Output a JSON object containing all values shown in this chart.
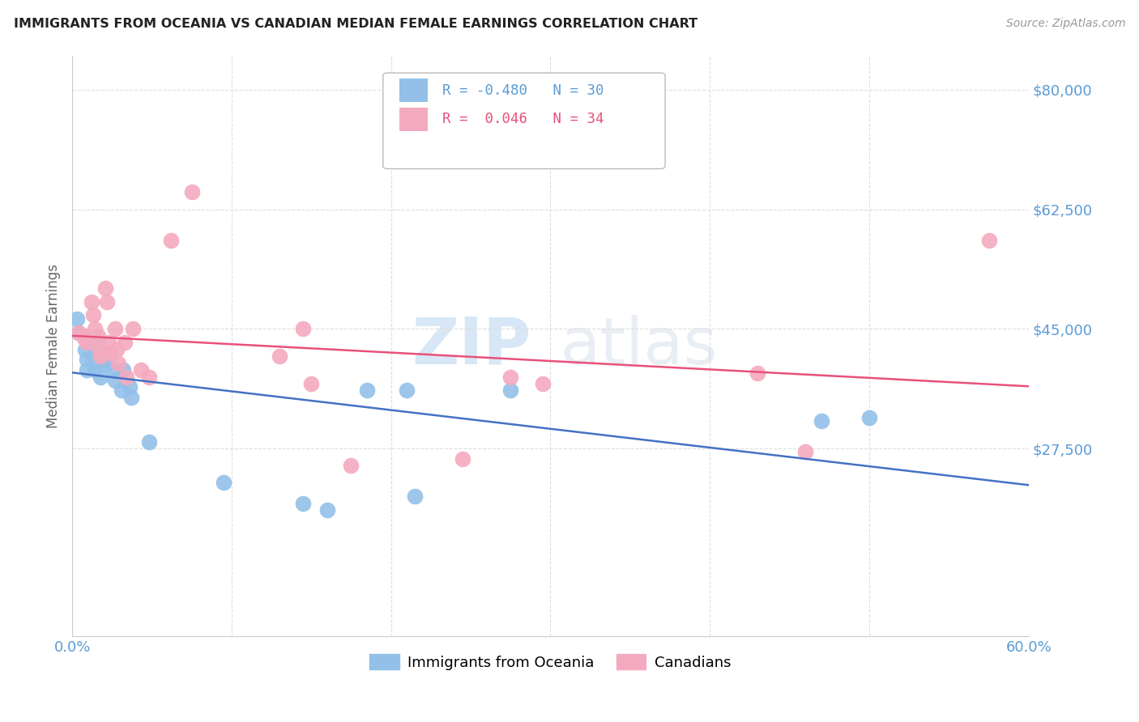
{
  "title": "IMMIGRANTS FROM OCEANIA VS CANADIAN MEDIAN FEMALE EARNINGS CORRELATION CHART",
  "source": "Source: ZipAtlas.com",
  "ylabel": "Median Female Earnings",
  "xlim": [
    0.0,
    0.6
  ],
  "ylim": [
    0,
    85000
  ],
  "ytick_positions": [
    0,
    27500,
    45000,
    62500,
    80000
  ],
  "ytick_labels": [
    "",
    "$27,500",
    "$45,000",
    "$62,500",
    "$80,000"
  ],
  "xtick_positions": [
    0.0,
    0.1,
    0.2,
    0.3,
    0.4,
    0.5,
    0.6
  ],
  "xtick_labels": [
    "0.0%",
    "",
    "",
    "",
    "",
    "",
    "60.0%"
  ],
  "blue_color": "#92C0E8",
  "pink_color": "#F4AABE",
  "line_blue": "#4472C4",
  "line_pink": "#E8517A",
  "axis_color": "#5B9BD5",
  "grid_color": "#DDDDDD",
  "blue_R": "-0.480",
  "blue_N": "30",
  "pink_R": "0.046",
  "pink_N": "34",
  "legend_label_blue": "Immigrants from Oceania",
  "legend_label_pink": "Canadians",
  "watermark_zip": "ZIP",
  "watermark_atlas": "atlas",
  "blue_x": [
    0.003,
    0.004,
    0.007,
    0.008,
    0.009,
    0.009,
    0.012,
    0.013,
    0.014,
    0.016,
    0.017,
    0.018,
    0.021,
    0.022,
    0.026,
    0.027,
    0.031,
    0.032,
    0.036,
    0.037,
    0.048,
    0.095,
    0.145,
    0.16,
    0.185,
    0.21,
    0.215,
    0.275,
    0.47,
    0.5
  ],
  "blue_y": [
    46500,
    44500,
    44000,
    42000,
    40500,
    39000,
    43000,
    41000,
    39000,
    43000,
    40000,
    38000,
    41000,
    40000,
    39000,
    37500,
    36000,
    39000,
    36500,
    35000,
    28500,
    22500,
    19500,
    18500,
    36000,
    36000,
    20500,
    36000,
    31500,
    32000
  ],
  "pink_x": [
    0.004,
    0.007,
    0.008,
    0.009,
    0.012,
    0.013,
    0.014,
    0.016,
    0.017,
    0.018,
    0.021,
    0.022,
    0.023,
    0.024,
    0.027,
    0.028,
    0.029,
    0.033,
    0.034,
    0.038,
    0.043,
    0.048,
    0.062,
    0.075,
    0.13,
    0.145,
    0.15,
    0.175,
    0.245,
    0.275,
    0.295,
    0.43,
    0.46,
    0.575
  ],
  "pink_y": [
    44500,
    44000,
    43500,
    43000,
    49000,
    47000,
    45000,
    44000,
    42000,
    41000,
    51000,
    49000,
    43000,
    41500,
    45000,
    42000,
    40000,
    43000,
    38000,
    45000,
    39000,
    38000,
    58000,
    65000,
    41000,
    45000,
    37000,
    25000,
    26000,
    38000,
    37000,
    38500,
    27000,
    58000
  ]
}
